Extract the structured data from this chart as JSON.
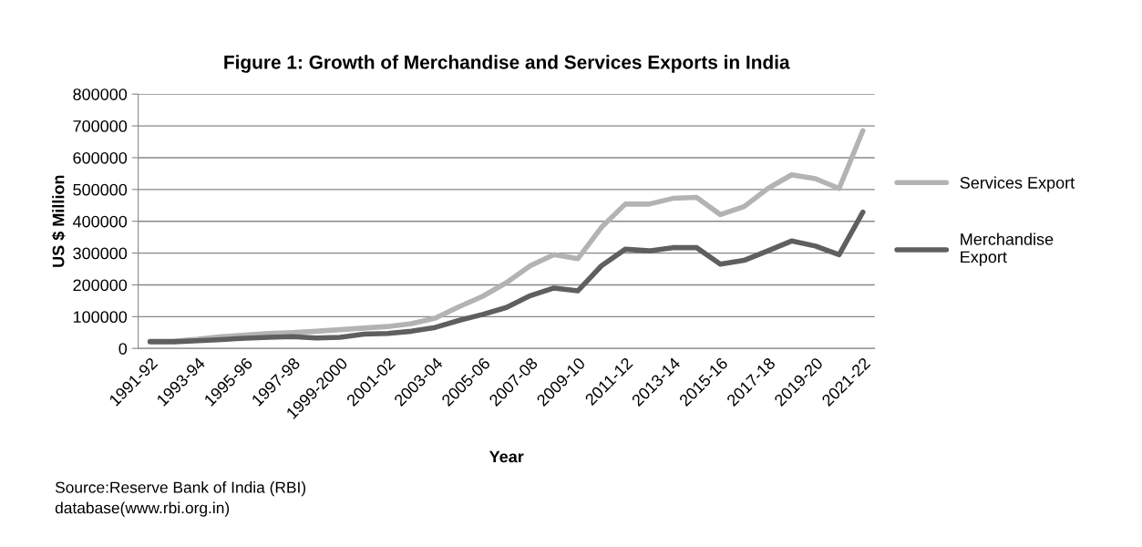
{
  "chart_data": {
    "type": "line",
    "title": "Figure 1: Growth of Merchandise and Services Exports in India",
    "xlabel": "Year",
    "ylabel": "US $ Million",
    "categories": [
      "1991-92",
      null,
      "1993-94",
      null,
      "1995-96",
      null,
      "1997-98",
      null,
      "1999-2000",
      null,
      "2001-02",
      null,
      "2003-04",
      null,
      "2005-06",
      null,
      "2007-08",
      null,
      "2009-10",
      null,
      "2011-12",
      null,
      "2013-14",
      null,
      "2015-16",
      null,
      "2017-18",
      null,
      "2019-20",
      null,
      "2021-22"
    ],
    "series": [
      {
        "name": "Services Export",
        "color": "#b3b3b3",
        "values": [
          23000,
          23000,
          29000,
          37000,
          42000,
          47000,
          50000,
          54000,
          59000,
          64000,
          69000,
          78000,
          95000,
          131000,
          164000,
          207000,
          260000,
          295000,
          282000,
          381000,
          454000,
          454000,
          472000,
          475000,
          421000,
          446000,
          503000,
          546000,
          534000,
          503000,
          685000
        ]
      },
      {
        "name": "Merchandise\nExport",
        "color": "#5f5f5f",
        "values": [
          21000,
          21000,
          24000,
          28000,
          32000,
          35000,
          37000,
          33000,
          35000,
          45000,
          47000,
          54000,
          66000,
          88000,
          107000,
          129000,
          166000,
          190000,
          181000,
          260000,
          312000,
          307000,
          317000,
          317000,
          265000,
          277000,
          307000,
          338000,
          322000,
          295000,
          429000
        ]
      }
    ],
    "ylim": [
      0,
      800000
    ],
    "yticks": [
      0,
      100000,
      200000,
      300000,
      400000,
      500000,
      600000,
      700000,
      800000
    ],
    "grid": "y",
    "legend": "right",
    "marker": "none",
    "line_style": "solid",
    "annotations": [
      "Source:Reserve Bank of India (RBI)\ndatabase(www.rbi.org.in)"
    ]
  }
}
